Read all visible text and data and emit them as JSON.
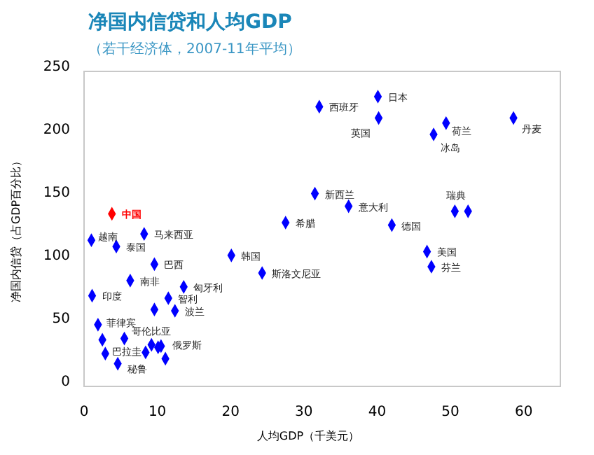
{
  "chart_data": {
    "type": "scatter",
    "title": "净国内信贷和人均GDP",
    "subtitle": "（若干经济体，2007-11年平均）",
    "xlabel": "人均GDP（千美元）",
    "ylabel": "净国内信贷（占GDP百分比）",
    "xlim": [
      0,
      65
    ],
    "ylim": [
      0,
      250
    ],
    "xticks": [
      0,
      10,
      20,
      30,
      40,
      50,
      60
    ],
    "yticks": [
      0,
      50,
      100,
      150,
      200,
      250
    ],
    "grid": false,
    "marker": "diamond",
    "series": [
      {
        "x": [
          3.8,
          1.0,
          4.4,
          8.2,
          9.6,
          6.3,
          13.6,
          1.1,
          11.5,
          12.4,
          9.6,
          1.9,
          2.5,
          5.5,
          9.2,
          10.5,
          10.1,
          8.4,
          2.9,
          11.1,
          4.6,
          20.1,
          24.3,
          27.5,
          31.5,
          36.1,
          32.1,
          40.1,
          40.2,
          42.0,
          49.4,
          47.7,
          58.6,
          50.6,
          52.4,
          46.8,
          47.4
        ],
        "values": [
          137,
          116,
          111,
          121,
          97,
          84,
          79,
          72,
          70,
          60,
          61,
          49,
          37,
          38,
          33,
          32,
          31,
          27,
          26,
          22,
          18,
          104,
          90,
          130,
          153,
          143,
          222,
          230,
          213,
          128,
          209,
          200,
          213,
          139,
          139,
          107,
          95
        ],
        "colors": [
          "#ff0000",
          "#0000ff",
          "#0000ff",
          "#0000ff",
          "#0000ff",
          "#0000ff",
          "#0000ff",
          "#0000ff",
          "#0000ff",
          "#0000ff",
          "#0000ff",
          "#0000ff",
          "#0000ff",
          "#0000ff",
          "#0000ff",
          "#0000ff",
          "#0000ff",
          "#0000ff",
          "#0000ff",
          "#0000ff",
          "#0000ff",
          "#0000ff",
          "#0000ff",
          "#0000ff",
          "#0000ff",
          "#0000ff",
          "#0000ff",
          "#0000ff",
          "#0000ff",
          "#0000ff",
          "#0000ff",
          "#0000ff",
          "#0000ff",
          "#0000ff",
          "#0000ff",
          "#0000ff",
          "#0000ff"
        ]
      }
    ],
    "annotations": [
      {
        "text": "中国",
        "x": 3.8,
        "y": 137
      },
      {
        "text": "越南",
        "x": 1.0,
        "y": 116
      },
      {
        "text": "泰国",
        "x": 4.4,
        "y": 111
      },
      {
        "text": "马来西亚",
        "x": 8.2,
        "y": 121
      },
      {
        "text": "巴西",
        "x": 9.6,
        "y": 97
      },
      {
        "text": "南非",
        "x": 6.3,
        "y": 84
      },
      {
        "text": "匈牙利",
        "x": 13.6,
        "y": 79
      },
      {
        "text": "印度",
        "x": 1.1,
        "y": 72
      },
      {
        "text": "智利",
        "x": 11.5,
        "y": 70
      },
      {
        "text": "波兰",
        "x": 12.4,
        "y": 60
      },
      {
        "text": "菲律宾",
        "x": 1.9,
        "y": 49
      },
      {
        "text": "哥伦比亚",
        "x": 5.5,
        "y": 38
      },
      {
        "text": "巴拉圭",
        "x": 2.9,
        "y": 26
      },
      {
        "text": "俄罗斯",
        "x": 10.5,
        "y": 32
      },
      {
        "text": "秘鲁",
        "x": 4.6,
        "y": 18
      },
      {
        "text": "韩国",
        "x": 20.1,
        "y": 104
      },
      {
        "text": "斯洛文尼亚",
        "x": 24.3,
        "y": 90
      },
      {
        "text": "希腊",
        "x": 27.5,
        "y": 130
      },
      {
        "text": "新西兰",
        "x": 31.5,
        "y": 153
      },
      {
        "text": "意大利",
        "x": 36.1,
        "y": 143
      },
      {
        "text": "西班牙",
        "x": 32.1,
        "y": 222
      },
      {
        "text": "日本",
        "x": 40.1,
        "y": 230
      },
      {
        "text": "英国",
        "x": 40.2,
        "y": 213
      },
      {
        "text": "德国",
        "x": 42.0,
        "y": 128
      },
      {
        "text": "荷兰",
        "x": 49.4,
        "y": 209
      },
      {
        "text": "冰岛",
        "x": 47.7,
        "y": 200
      },
      {
        "text": "丹麦",
        "x": 58.6,
        "y": 213
      },
      {
        "text": "瑞典",
        "x": 50.6,
        "y": 139
      },
      {
        "text": "美国",
        "x": 46.8,
        "y": 107
      },
      {
        "text": "芬兰",
        "x": 47.4,
        "y": 95
      }
    ]
  }
}
